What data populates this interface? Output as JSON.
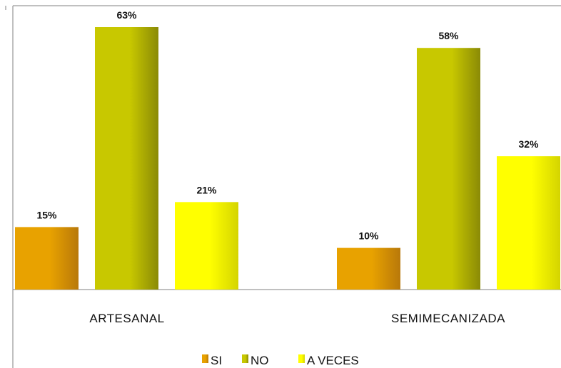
{
  "chart_data": {
    "type": "bar",
    "title": "",
    "xlabel": "",
    "ylabel": "",
    "categories": [
      "ARTESANAL",
      "SEMIMECANIZADA"
    ],
    "series": [
      {
        "name": "SI",
        "values": [
          15,
          10
        ],
        "labels": [
          "15%",
          "10%"
        ],
        "color": "#e8a200",
        "color_dark": "#b8780a"
      },
      {
        "name": "NO",
        "values": [
          63,
          58
        ],
        "labels": [
          "63%",
          "58%"
        ],
        "color": "#c8c800",
        "color_dark": "#8a8a06"
      },
      {
        "name": "A VECES",
        "values": [
          21,
          32
        ],
        "labels": [
          "21%",
          "32%"
        ],
        "color": "#ffff00",
        "color_dark": "#d4d400"
      }
    ],
    "ylim": [
      0,
      63
    ],
    "grid": false,
    "legend": "bottom",
    "y_axis_visible": false
  }
}
